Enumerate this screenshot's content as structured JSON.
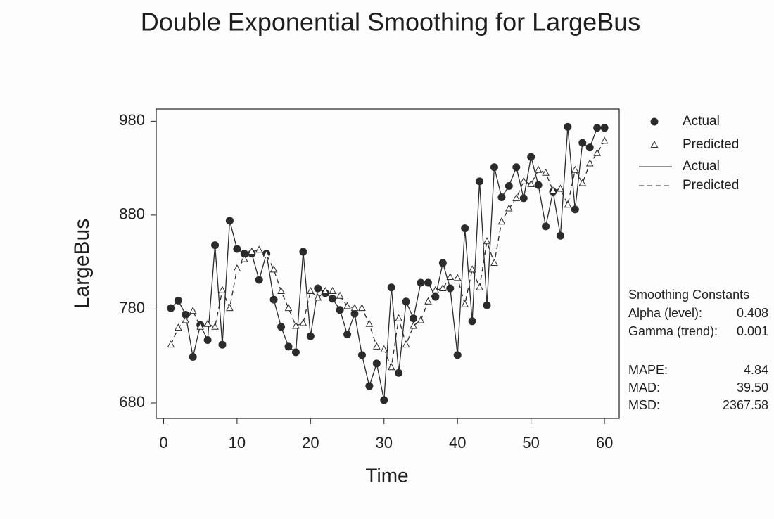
{
  "chart_data": {
    "type": "line",
    "title": "Double Exponential Smoothing for LargeBus",
    "x_label": "Time",
    "y_label": "LargeBus",
    "x": [
      1,
      2,
      3,
      4,
      5,
      6,
      7,
      8,
      9,
      10,
      11,
      12,
      13,
      14,
      15,
      16,
      17,
      18,
      19,
      20,
      21,
      22,
      23,
      24,
      25,
      26,
      27,
      28,
      29,
      30,
      31,
      32,
      33,
      34,
      35,
      36,
      37,
      38,
      39,
      40,
      41,
      42,
      43,
      44,
      45,
      46,
      47,
      48,
      49,
      50,
      51,
      52,
      53,
      54,
      55,
      56,
      57,
      58,
      59,
      60
    ],
    "series": [
      {
        "name": "Actual",
        "color": "#2b2b2b",
        "marker": "circle",
        "dash": false,
        "values": [
          781,
          789,
          774,
          729,
          763,
          747,
          848,
          742,
          874,
          844,
          839,
          839,
          811,
          839,
          790,
          761,
          740,
          734,
          841,
          751,
          802,
          797,
          791,
          779,
          753,
          775,
          731,
          698,
          722,
          683,
          803,
          712,
          788,
          770,
          808,
          808,
          793,
          829,
          802,
          731,
          866,
          767,
          916,
          784,
          931,
          899,
          911,
          931,
          898,
          942,
          912,
          868,
          905,
          858,
          974,
          886,
          957,
          952,
          973,
          973
        ]
      },
      {
        "name": "Predicted",
        "color": "#2b2b2b",
        "marker": "triangle",
        "dash": true,
        "values": [
          742,
          760,
          768,
          778,
          761,
          764,
          761,
          800,
          781,
          823,
          833,
          841,
          843,
          838,
          822,
          799,
          781,
          762,
          765,
          799,
          792,
          799,
          799,
          794,
          783,
          781,
          781,
          764,
          740,
          737,
          718,
          770,
          742,
          762,
          768,
          788,
          800,
          802,
          814,
          813,
          785,
          822,
          803,
          852,
          829,
          873,
          887,
          898,
          916,
          913,
          928,
          925,
          906,
          908,
          891,
          928,
          914,
          935,
          946,
          959
        ]
      }
    ],
    "xlim": [
      -1,
      62
    ],
    "ylim": [
      663.5,
      993
    ],
    "xticks": [
      0,
      10,
      20,
      30,
      40,
      50,
      60
    ],
    "yticks": [
      680,
      780,
      880,
      980
    ],
    "legend": "right",
    "stats_heading": "Smoothing Constants",
    "stats": [
      {
        "label": "Alpha (level):",
        "value": 0.408
      },
      {
        "label": "Gamma (trend):",
        "value": 0.001
      },
      {
        "label": "MAPE:",
        "value": 4.84
      },
      {
        "label": "MAD:",
        "value": 39.5,
        "value_label": "39.50"
      },
      {
        "label": "MSD:",
        "value": 2367.58
      }
    ]
  }
}
